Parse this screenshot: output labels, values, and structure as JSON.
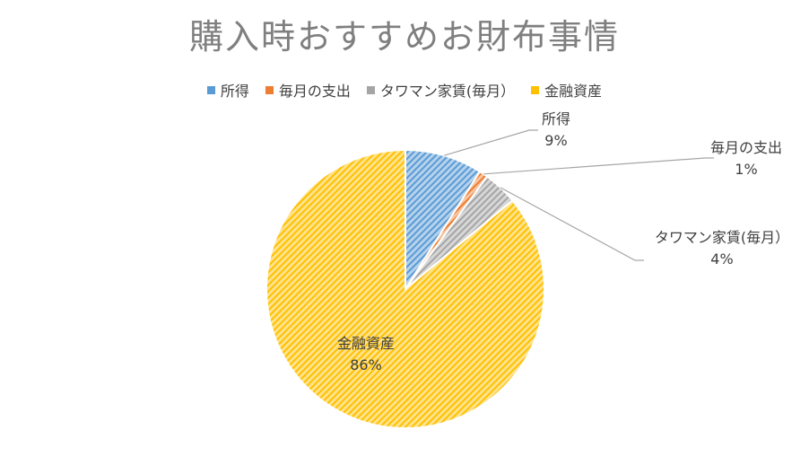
{
  "chart_data": {
    "type": "pie",
    "title": "購入時おすすめお財布事情",
    "legend_position": "top",
    "series": [
      {
        "name": "所得",
        "value": 9,
        "label": "9%",
        "color": "#5b9bd5"
      },
      {
        "name": "毎月の支出",
        "value": 1,
        "label": "1%",
        "color": "#ed7d31"
      },
      {
        "name": "タワマン家賃(毎月）",
        "value": 4,
        "label": "4%",
        "color": "#a5a5a5"
      },
      {
        "name": "金融資産",
        "value": 86,
        "label": "86%",
        "color": "#ffc000"
      }
    ]
  }
}
